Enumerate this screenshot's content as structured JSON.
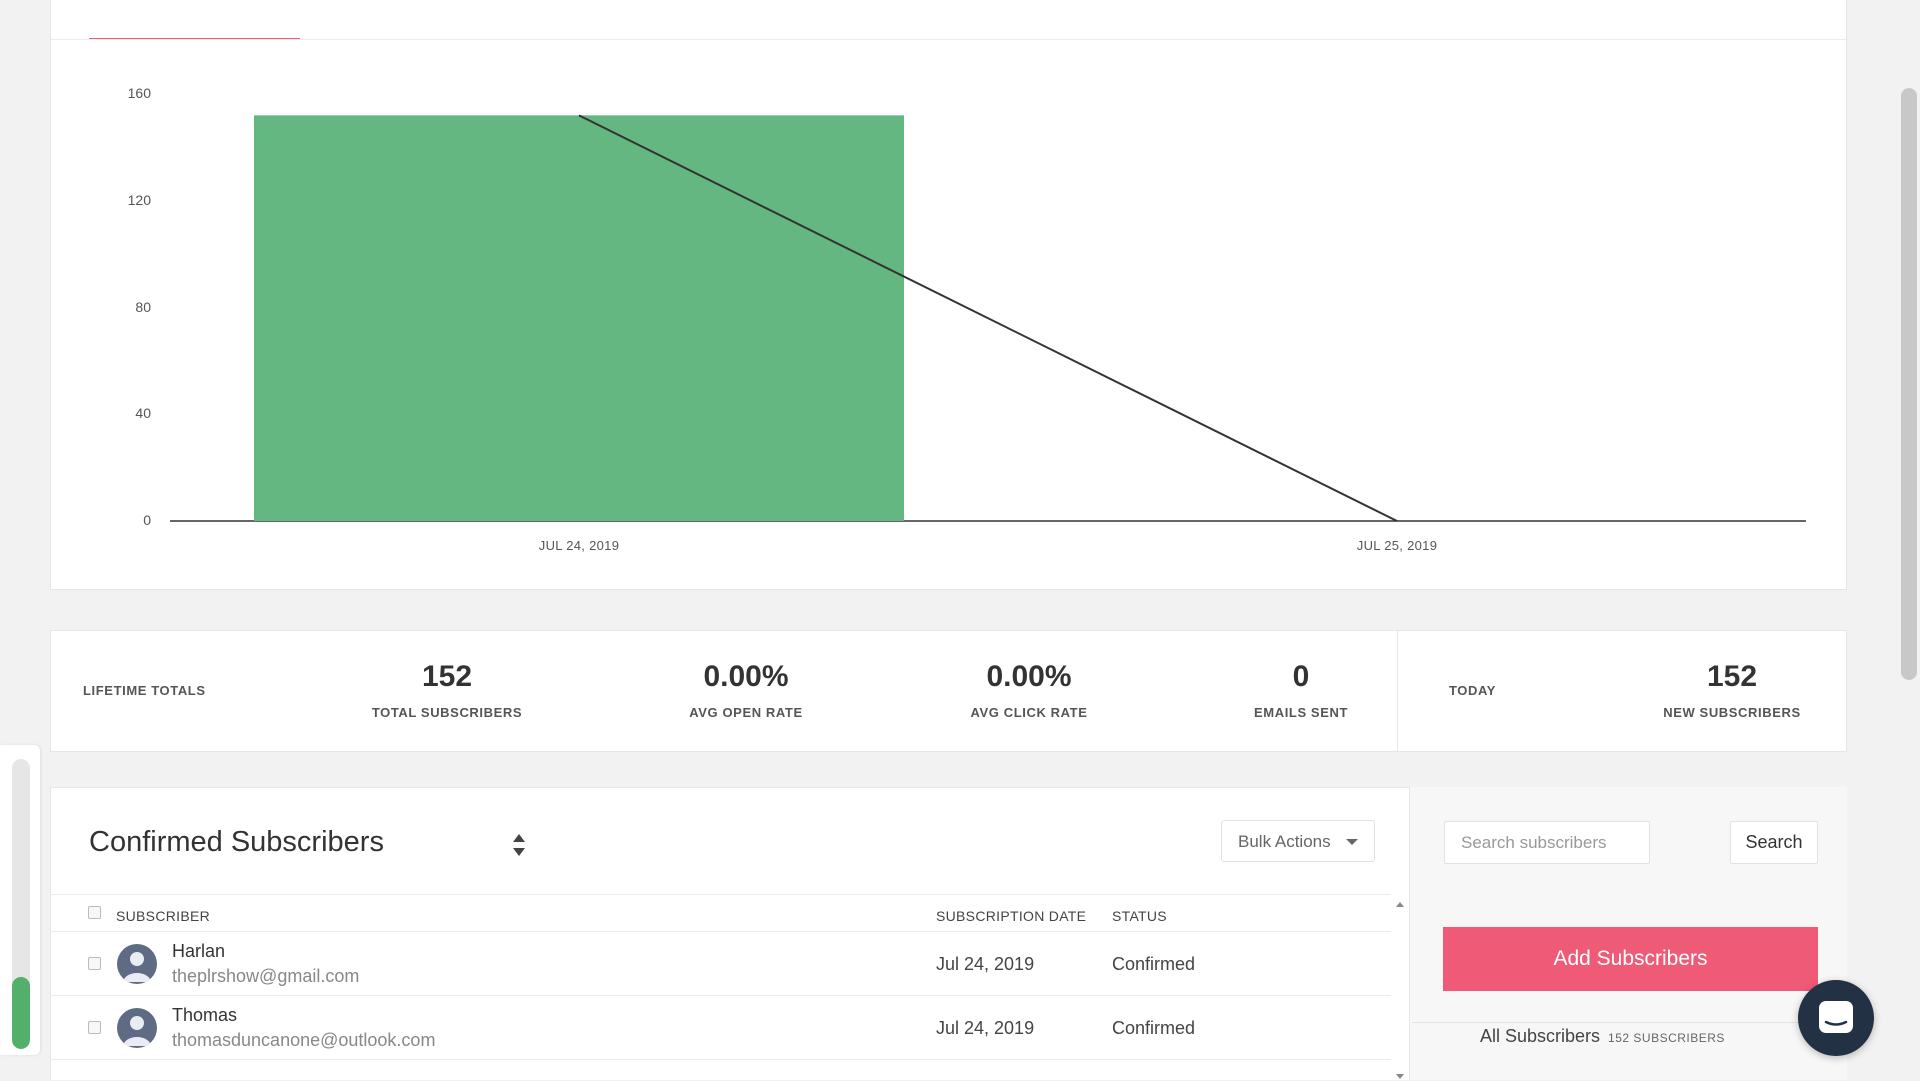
{
  "colors": {
    "accent": "#ef5a76",
    "bar_green": "#65b781",
    "line": "#333333",
    "chat_button": "#233145"
  },
  "chart_data": {
    "type": "bar",
    "categories": [
      "JUL 24, 2019",
      "JUL 25, 2019"
    ],
    "series": [
      {
        "type": "bar",
        "values": [
          152,
          0
        ]
      },
      {
        "type": "line",
        "values": [
          152,
          0
        ]
      }
    ],
    "ylim": [
      0,
      160
    ],
    "yticks": [
      0,
      40,
      80,
      120,
      160
    ],
    "xlabel": "",
    "ylabel": "",
    "grid": false
  },
  "stats": {
    "lifetime_label": "LIFETIME TOTALS",
    "items": [
      {
        "value": "152",
        "label": "TOTAL SUBSCRIBERS"
      },
      {
        "value": "0.00%",
        "label": "AVG OPEN RATE"
      },
      {
        "value": "0.00%",
        "label": "AVG CLICK RATE"
      },
      {
        "value": "0",
        "label": "EMAILS SENT"
      }
    ],
    "today_label": "TODAY",
    "today": {
      "value": "152",
      "label": "NEW SUBSCRIBERS"
    }
  },
  "subscribers": {
    "title": "Confirmed Subscribers",
    "bulk_actions_label": "Bulk Actions",
    "columns": [
      "SUBSCRIBER",
      "SUBSCRIPTION DATE",
      "STATUS"
    ],
    "rows": [
      {
        "name": "Harlan",
        "email": "theplrshow@gmail.com",
        "date": "Jul 24, 2019",
        "status": "Confirmed",
        "icon": "user-avatar-icon"
      },
      {
        "name": "Thomas",
        "email": "thomasduncanone@outlook.com",
        "date": "Jul 24, 2019",
        "status": "Confirmed",
        "icon": "user-avatar-icon"
      }
    ]
  },
  "sidebar": {
    "search_placeholder": "Search subscribers",
    "search_button": "Search",
    "add_button": "Add Subscribers",
    "all_subscribers_label": "All Subscribers",
    "all_subscribers_count": "152 SUBSCRIBERS"
  },
  "widgets": {
    "progress_fraction": 0.25,
    "chat_icon": "chat-bubble-icon"
  }
}
